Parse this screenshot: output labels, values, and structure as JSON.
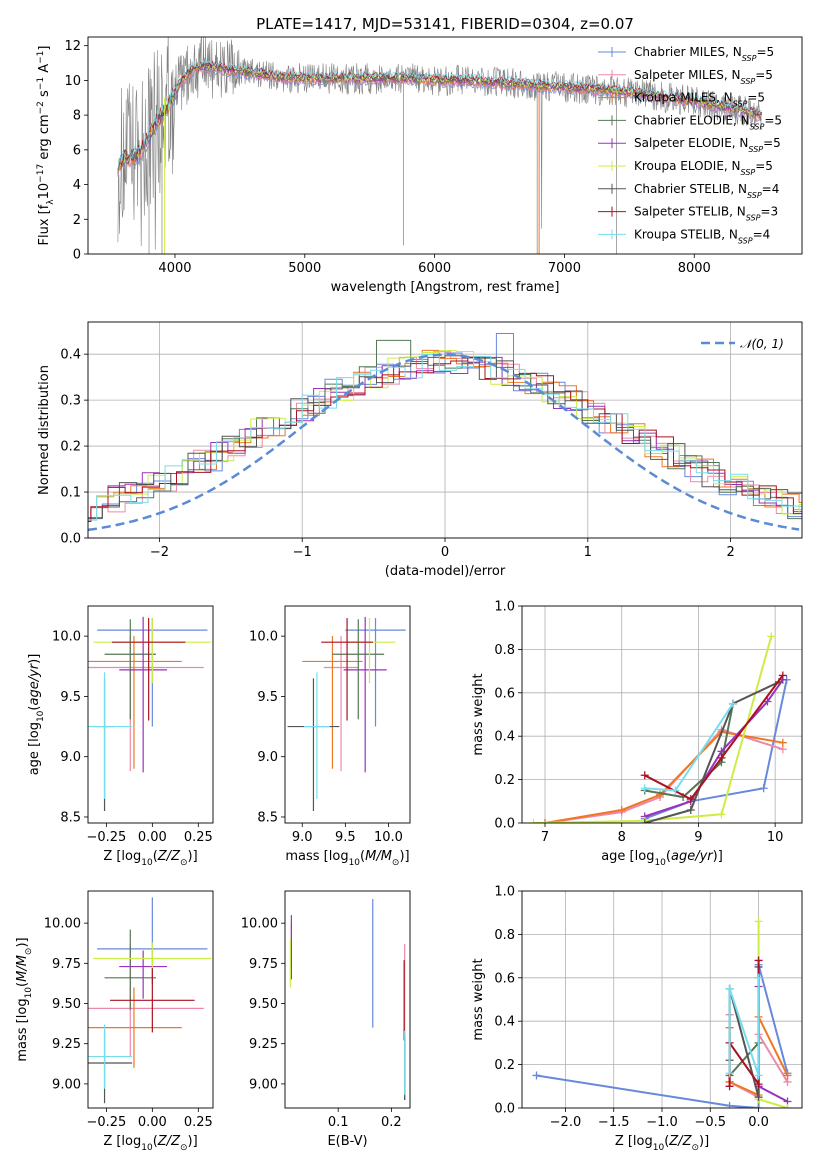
{
  "title": "PLATE=1417, MJD=53141, FIBERID=0304, z=0.07",
  "colors": {
    "Chabrier MILES": "#6688dd",
    "Salpeter MILES": "#ee88aa",
    "Kroupa MILES": "#ee7722",
    "Chabrier ELODIE": "#557755",
    "Salpeter ELODIE": "#9933bb",
    "Kroupa ELODIE": "#ccee44",
    "Chabrier STELIB": "#555555",
    "Salpeter STELIB": "#aa1122",
    "Kroupa STELIB": "#77ddee"
  },
  "chart_data": [
    {
      "id": "spectrum",
      "type": "line",
      "title": "PLATE=1417, MJD=53141, FIBERID=0304, z=0.07",
      "xlabel": "wavelength [Angstrom, rest frame]",
      "ylabel": "Flux [f_λ 10^-17 erg cm^-2 s^-1 A^-1]",
      "xlim": [
        3330,
        8830
      ],
      "ylim": [
        0,
        12.5
      ],
      "xticks": [
        4000,
        5000,
        6000,
        7000,
        8000
      ],
      "yticks": [
        0,
        2,
        4,
        6,
        8,
        10,
        12
      ],
      "legend_position": "right",
      "legend": [
        {
          "label": "Chabrier MILES, N",
          "sub": "SSP",
          "suffix": "=5",
          "model": "Chabrier MILES"
        },
        {
          "label": "Salpeter MILES, N",
          "sub": "SSP",
          "suffix": "=5",
          "model": "Salpeter MILES"
        },
        {
          "label": "Kroupa MILES, N",
          "sub": "SSP",
          "suffix": "=5",
          "model": "Kroupa MILES"
        },
        {
          "label": "Chabrier ELODIE, N",
          "sub": "SSP",
          "suffix": "=5",
          "model": "Chabrier ELODIE"
        },
        {
          "label": "Salpeter ELODIE, N",
          "sub": "SSP",
          "suffix": "=5",
          "model": "Salpeter ELODIE"
        },
        {
          "label": "Kroupa ELODIE, N",
          "sub": "SSP",
          "suffix": "=5",
          "model": "Kroupa ELODIE"
        },
        {
          "label": "Chabrier STELIB, N",
          "sub": "SSP",
          "suffix": "=4",
          "model": "Chabrier STELIB"
        },
        {
          "label": "Salpeter STELIB, N",
          "sub": "SSP",
          "suffix": "=3",
          "model": "Salpeter STELIB"
        },
        {
          "label": "Kroupa STELIB, N",
          "sub": "SSP",
          "suffix": "=4",
          "model": "Kroupa STELIB"
        }
      ],
      "continuum": {
        "x": [
          3550,
          3620,
          3680,
          3750,
          3850,
          3950,
          4050,
          4150,
          4250,
          4400,
          4600,
          4800,
          5000,
          5200,
          5400,
          5600,
          5800,
          6000,
          6200,
          6400,
          6600,
          6800,
          7000,
          7200,
          7400,
          7600,
          7800,
          8000,
          8200,
          8400,
          8500
        ],
        "y": [
          5.0,
          5.6,
          5.5,
          6.0,
          7.5,
          8.6,
          10.0,
          10.7,
          10.8,
          10.6,
          10.4,
          10.2,
          10.1,
          10.1,
          10.1,
          10.1,
          10.1,
          10.0,
          10.0,
          9.9,
          9.8,
          9.7,
          9.6,
          9.5,
          9.4,
          9.2,
          9.0,
          8.8,
          8.5,
          8.2,
          8.0
        ]
      }
    },
    {
      "id": "residuals",
      "type": "histogram",
      "xlabel": "(data-model)/error",
      "ylabel": "Normed distribution",
      "xlim": [
        -2.5,
        2.5
      ],
      "ylim": [
        0,
        0.47
      ],
      "xticks": [
        -2,
        -1,
        0,
        1,
        2
      ],
      "yticks": [
        0.0,
        0.1,
        0.2,
        0.3,
        0.4
      ],
      "reference_curve": "N(0,1)",
      "legend_position": "top-right",
      "legend": [
        {
          "label": "𝒩(0, 1)"
        }
      ],
      "grid": true
    },
    {
      "id": "age-vs-Z",
      "type": "errorbar",
      "xlabel": "Z [log10(Z/Z⊙)]",
      "ylabel": "age [log10(age/yr)]",
      "xlim": [
        -0.35,
        0.33
      ],
      "ylim": [
        8.45,
        10.25
      ],
      "xticks": [
        -0.25,
        0.0,
        0.25
      ],
      "yticks": [
        8.5,
        9.0,
        9.5,
        10.0
      ],
      "points": [
        {
          "model": "Chabrier MILES",
          "x": 0.0,
          "xerr": 0.3,
          "y": 10.05,
          "yerr": [
            0.8,
            0.1
          ]
        },
        {
          "model": "Salpeter MILES",
          "x": -0.12,
          "xerr": 0.4,
          "y": 9.74,
          "yerr": [
            0.86,
            0.26
          ]
        },
        {
          "model": "Kroupa MILES",
          "x": -0.1,
          "xerr": 0.26,
          "y": 9.79,
          "yerr": [
            0.89,
            0.21
          ]
        },
        {
          "model": "Chabrier ELODIE",
          "x": -0.12,
          "xerr": 0.14,
          "y": 9.85,
          "yerr": [
            0.54,
            0.29
          ]
        },
        {
          "model": "Salpeter ELODIE",
          "x": -0.05,
          "xerr": 0.13,
          "y": 9.72,
          "yerr": [
            0.85,
            0.44
          ]
        },
        {
          "model": "Kroupa ELODIE",
          "x": 0.0,
          "xerr": 0.32,
          "y": 9.95,
          "yerr": [
            0.34,
            0.2
          ]
        },
        {
          "model": "Chabrier STELIB",
          "x": -0.26,
          "xerr": 0.05,
          "y": 9.25,
          "yerr": [
            0.7,
            0.4
          ]
        },
        {
          "model": "Salpeter STELIB",
          "x": -0.02,
          "xerr": 0.2,
          "y": 9.95,
          "yerr": [
            0.65,
            0.2
          ]
        },
        {
          "model": "Kroupa STELIB",
          "x": -0.26,
          "xerr": 0.15,
          "y": 9.25,
          "yerr": [
            0.6,
            0.45
          ]
        }
      ]
    },
    {
      "id": "age-vs-mass",
      "type": "errorbar",
      "xlabel": "mass [log10(M/M⊙)]",
      "ylabel": "",
      "xlim": [
        8.8,
        10.25
      ],
      "ylim": [
        8.45,
        10.25
      ],
      "xticks": [
        9.0,
        9.5,
        10.0
      ],
      "yticks": [
        8.5,
        9.0,
        9.5,
        10.0
      ],
      "points": [
        {
          "model": "Chabrier MILES",
          "x": 9.85,
          "xerr": 0.35,
          "y": 10.05,
          "yerr": [
            0.8,
            0.1
          ]
        },
        {
          "model": "Salpeter MILES",
          "x": 9.45,
          "xerr": 0.2,
          "y": 9.74,
          "yerr": [
            0.86,
            0.26
          ]
        },
        {
          "model": "Kroupa MILES",
          "x": 9.35,
          "xerr": 0.35,
          "y": 9.79,
          "yerr": [
            0.89,
            0.21
          ]
        },
        {
          "model": "Chabrier ELODIE",
          "x": 9.65,
          "xerr": 0.3,
          "y": 9.85,
          "yerr": [
            0.54,
            0.29
          ]
        },
        {
          "model": "Salpeter ELODIE",
          "x": 9.73,
          "xerr": 0.25,
          "y": 9.72,
          "yerr": [
            0.85,
            0.44
          ]
        },
        {
          "model": "Kroupa ELODIE",
          "x": 9.78,
          "xerr": 0.3,
          "y": 9.95,
          "yerr": [
            0.34,
            0.2
          ]
        },
        {
          "model": "Chabrier STELIB",
          "x": 9.13,
          "xerr": 0.3,
          "y": 9.25,
          "yerr": [
            0.7,
            0.4
          ]
        },
        {
          "model": "Salpeter STELIB",
          "x": 9.52,
          "xerr": 0.3,
          "y": 9.95,
          "yerr": [
            0.65,
            0.2
          ]
        },
        {
          "model": "Kroupa STELIB",
          "x": 9.17,
          "xerr": 0.15,
          "y": 9.25,
          "yerr": [
            0.6,
            0.45
          ]
        }
      ]
    },
    {
      "id": "mass-weight-vs-age",
      "type": "line",
      "xlabel": "age [log10(age/yr)]",
      "ylabel": "mass weight",
      "xlim": [
        6.7,
        10.35
      ],
      "ylim": [
        0,
        1.0
      ],
      "xticks": [
        7,
        8,
        9,
        10
      ],
      "yticks": [
        0.0,
        0.2,
        0.4,
        0.6,
        0.8,
        1.0
      ],
      "grid": true,
      "series": [
        {
          "model": "Chabrier MILES",
          "x": [
            8.3,
            8.9,
            9.85,
            10.15
          ],
          "y": [
            0.02,
            0.1,
            0.16,
            0.66
          ]
        },
        {
          "model": "Salpeter MILES",
          "x": [
            7.0,
            8.0,
            8.5,
            9.3,
            10.1
          ],
          "y": [
            0.0,
            0.05,
            0.12,
            0.43,
            0.34
          ]
        },
        {
          "model": "Kroupa MILES",
          "x": [
            7.0,
            8.0,
            8.5,
            9.3,
            10.1
          ],
          "y": [
            0.0,
            0.06,
            0.13,
            0.42,
            0.37
          ]
        },
        {
          "model": "Chabrier ELODIE",
          "x": [
            8.3,
            8.8,
            9.3,
            9.45
          ],
          "y": [
            0.15,
            0.12,
            0.28,
            0.55
          ]
        },
        {
          "model": "Salpeter ELODIE",
          "x": [
            8.3,
            8.9,
            9.3,
            9.9,
            10.1
          ],
          "y": [
            0.03,
            0.1,
            0.33,
            0.56,
            0.66
          ]
        },
        {
          "model": "Kroupa ELODIE",
          "x": [
            6.85,
            8.3,
            9.3,
            9.95
          ],
          "y": [
            0.0,
            0.01,
            0.04,
            0.86
          ]
        },
        {
          "model": "Chabrier STELIB",
          "x": [
            8.3,
            8.9,
            9.45,
            10.05
          ],
          "y": [
            0.0,
            0.06,
            0.55,
            0.65
          ]
        },
        {
          "model": "Salpeter STELIB",
          "x": [
            8.3,
            8.9,
            9.3,
            10.1
          ],
          "y": [
            0.22,
            0.11,
            0.3,
            0.68
          ]
        },
        {
          "model": "Kroupa STELIB",
          "x": [
            8.3,
            8.7,
            9.45
          ],
          "y": [
            0.16,
            0.15,
            0.55
          ]
        }
      ]
    },
    {
      "id": "mass-vs-Z",
      "type": "errorbar",
      "xlabel": "Z [log10(Z/Z⊙)]",
      "ylabel": "mass [log10(M/M⊙)]",
      "xlim": [
        -0.35,
        0.33
      ],
      "ylim": [
        8.85,
        10.2
      ],
      "xticks": [
        -0.25,
        0.0,
        0.25
      ],
      "yticks": [
        9.0,
        9.25,
        9.5,
        9.75,
        10.0
      ],
      "points": [
        {
          "model": "Chabrier MILES",
          "x": 0.0,
          "xerr": 0.3,
          "y": 9.84,
          "yerr": [
            0.22,
            0.32
          ]
        },
        {
          "model": "Salpeter MILES",
          "x": -0.12,
          "xerr": 0.4,
          "y": 9.47,
          "yerr": [
            0.3,
            0.4
          ]
        },
        {
          "model": "Kroupa MILES",
          "x": -0.1,
          "xerr": 0.26,
          "y": 9.35,
          "yerr": [
            0.25,
            0.25
          ]
        },
        {
          "model": "Chabrier ELODIE",
          "x": -0.12,
          "xerr": 0.14,
          "y": 9.66,
          "yerr": [
            0.2,
            0.3
          ]
        },
        {
          "model": "Salpeter ELODIE",
          "x": -0.05,
          "xerr": 0.13,
          "y": 9.73,
          "yerr": [
            0.2,
            0.1
          ]
        },
        {
          "model": "Kroupa ELODIE",
          "x": 0.0,
          "xerr": 0.32,
          "y": 9.78,
          "yerr": [
            0.12,
            0.1
          ]
        },
        {
          "model": "Chabrier STELIB",
          "x": -0.26,
          "xerr": 0.15,
          "y": 9.13,
          "yerr": [
            0.25,
            0.2
          ]
        },
        {
          "model": "Salpeter STELIB",
          "x": 0.0,
          "xerr": 0.23,
          "y": 9.52,
          "yerr": [
            0.2,
            0.2
          ]
        },
        {
          "model": "Kroupa STELIB",
          "x": -0.26,
          "xerr": 0.15,
          "y": 9.17,
          "yerr": [
            0.2,
            0.2
          ]
        }
      ]
    },
    {
      "id": "mass-vs-EBV",
      "type": "errorbar",
      "xlabel": "E(B-V)",
      "ylabel": "",
      "xlim": [
        0.0,
        0.235
      ],
      "ylim": [
        8.85,
        10.2
      ],
      "xticks": [
        0.1,
        0.2
      ],
      "yticks": [
        9.0,
        9.25,
        9.5,
        9.75,
        10.0
      ],
      "points": [
        {
          "model": "Chabrier MILES",
          "x": 0.165,
          "y": 9.75,
          "yerr": [
            0.4,
            0.4
          ]
        },
        {
          "model": "Salpeter MILES",
          "x": 0.225,
          "y": 9.5,
          "yerr": [
            0.35,
            0.37
          ]
        },
        {
          "model": "Kroupa MILES",
          "x": 0.012,
          "y": 9.85,
          "yerr": [
            0.15,
            0.15
          ]
        },
        {
          "model": "Chabrier ELODIE",
          "x": 0.225,
          "y": 9.1,
          "yerr": [
            0.2,
            0.2
          ]
        },
        {
          "model": "Salpeter ELODIE",
          "x": 0.012,
          "y": 9.85,
          "yerr": [
            0.2,
            0.2
          ]
        },
        {
          "model": "Kroupa ELODIE",
          "x": 0.01,
          "y": 9.75,
          "yerr": [
            0.15,
            0.15
          ]
        },
        {
          "model": "Chabrier STELIB",
          "x": 0.225,
          "y": 9.1,
          "yerr": [
            0.2,
            0.2
          ]
        },
        {
          "model": "Salpeter STELIB",
          "x": 0.224,
          "y": 9.52,
          "yerr": [
            0.25,
            0.25
          ]
        },
        {
          "model": "Kroupa STELIB",
          "x": 0.225,
          "y": 9.13,
          "yerr": [
            0.2,
            0.2
          ]
        }
      ]
    },
    {
      "id": "mass-weight-vs-Z",
      "type": "line",
      "xlabel": "Z [log10(Z/Z⊙)]",
      "ylabel": "mass weight",
      "xlim": [
        -2.45,
        0.45
      ],
      "ylim": [
        0,
        1.0
      ],
      "xticks": [
        -2.0,
        -1.5,
        -1.0,
        -0.5,
        0.0
      ],
      "yticks": [
        0.0,
        0.2,
        0.4,
        0.6,
        0.8,
        1.0
      ],
      "grid": true,
      "series": [
        {
          "model": "Chabrier MILES",
          "x": [
            -2.3,
            -0.3,
            0.0,
            0.0,
            0.3
          ],
          "y": [
            0.15,
            0.01,
            0.0,
            0.66,
            0.16
          ]
        },
        {
          "model": "Salpeter MILES",
          "x": [
            -0.3,
            -0.3,
            0.0,
            0.0,
            0.3
          ],
          "y": [
            0.43,
            0.12,
            0.05,
            0.34,
            0.12
          ]
        },
        {
          "model": "Kroupa MILES",
          "x": [
            -0.3,
            -0.3,
            0.0,
            0.0,
            0.3
          ],
          "y": [
            0.37,
            0.12,
            0.06,
            0.42,
            0.15
          ]
        },
        {
          "model": "Chabrier ELODIE",
          "x": [
            -0.3,
            -0.3,
            0.0,
            0.0
          ],
          "y": [
            0.55,
            0.15,
            0.3,
            0.6
          ]
        },
        {
          "model": "Salpeter ELODIE",
          "x": [
            0.0,
            0.0,
            0.3
          ],
          "y": [
            0.56,
            0.1,
            0.03
          ]
        },
        {
          "model": "Kroupa ELODIE",
          "x": [
            0.0,
            0.0,
            0.3
          ],
          "y": [
            0.86,
            0.04,
            0.0
          ]
        },
        {
          "model": "Chabrier STELIB",
          "x": [
            -0.3,
            -0.3,
            0.0,
            0.0
          ],
          "y": [
            0.22,
            0.55,
            0.05,
            0.65
          ]
        },
        {
          "model": "Salpeter STELIB",
          "x": [
            -0.3,
            -0.3,
            0.0,
            0.0
          ],
          "y": [
            0.1,
            0.3,
            0.11,
            0.68
          ]
        },
        {
          "model": "Kroupa STELIB",
          "x": [
            -0.3,
            -0.3,
            0.0,
            0.0
          ],
          "y": [
            0.16,
            0.55,
            0.15,
            0.6
          ]
        }
      ]
    }
  ]
}
